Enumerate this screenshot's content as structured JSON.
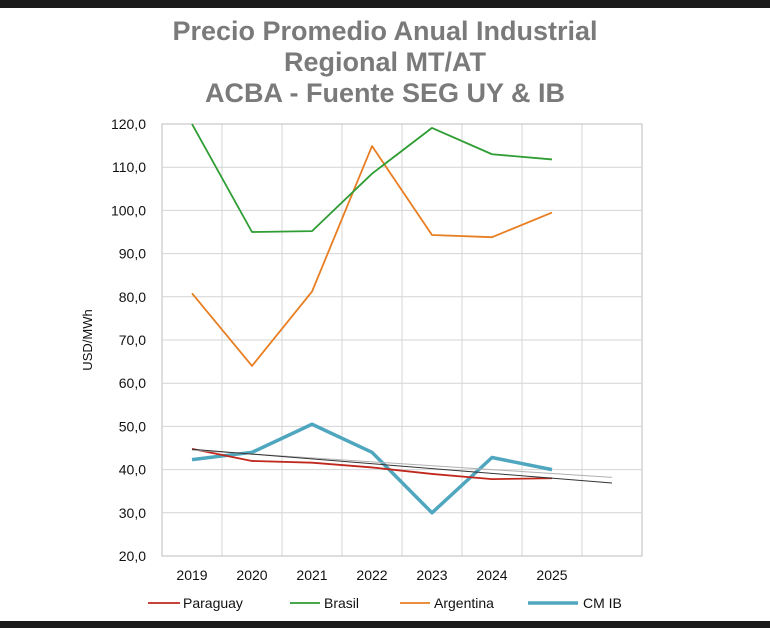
{
  "chart_data": {
    "type": "line",
    "title_lines": [
      "Precio Promedio Anual Industrial",
      "Regional MT/AT",
      "ACBA - Fuente SEG UY & IB"
    ],
    "xlabel": "",
    "ylabel": "USD/MWh",
    "categories": [
      "2019",
      "2020",
      "2021",
      "2022",
      "2023",
      "2024",
      "2025"
    ],
    "ylim": [
      20,
      120
    ],
    "yticks": [
      "20,0",
      "30,0",
      "40,0",
      "50,0",
      "60,0",
      "70,0",
      "80,0",
      "90,0",
      "100,0",
      "110,0",
      "120,0"
    ],
    "grid": true,
    "legend_position": "bottom",
    "series": [
      {
        "name": "Paraguay",
        "color": "#c0281e",
        "values": [
          44.8,
          42.0,
          41.6,
          40.5,
          39.0,
          37.8,
          38.0
        ]
      },
      {
        "name": "Brasil",
        "color": "#2e9d33",
        "values": [
          120.0,
          95.0,
          95.2,
          108.5,
          119.1,
          113.0,
          111.8
        ]
      },
      {
        "name": "Argentina",
        "color": "#e87e22",
        "values": [
          80.8,
          64.0,
          81.2,
          114.9,
          94.3,
          93.8,
          99.5
        ]
      },
      {
        "name": "CM IB",
        "color": "#4fa7bf",
        "values": [
          42.3,
          44.0,
          50.5,
          44.0,
          30.0,
          42.8,
          40.0
        ]
      }
    ],
    "trendlines": [
      {
        "of": "Paraguay",
        "color": "#b0b0b0",
        "start": 44.5,
        "end": 38.2
      },
      {
        "of": "CM IB",
        "color": "#333333",
        "start": 44.7,
        "end": 36.9
      }
    ]
  }
}
